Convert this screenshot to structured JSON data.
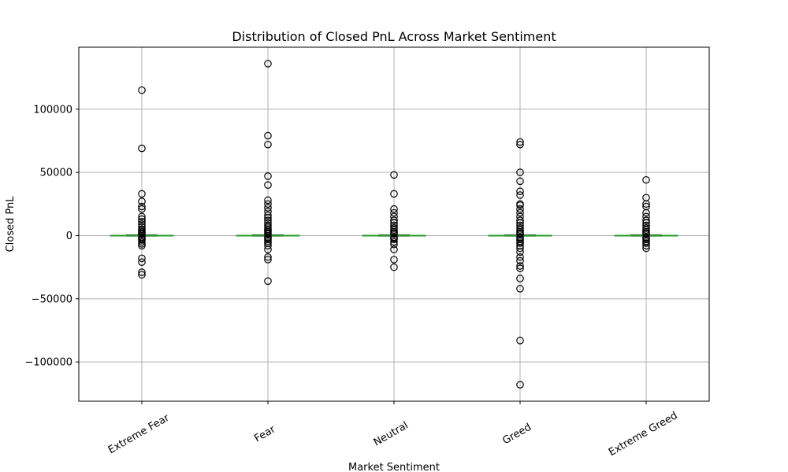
{
  "chart_data": {
    "type": "box",
    "title": "Distribution of Closed PnL Across Market Sentiment",
    "xlabel": "Market Sentiment",
    "ylabel": "Closed PnL",
    "categories": [
      "Extreme Fear",
      "Fear",
      "Neutral",
      "Greed",
      "Extreme Greed"
    ],
    "yticks": [
      -100000,
      -50000,
      0,
      50000,
      100000
    ],
    "ytick_labels": [
      "−100000",
      "−50000",
      "0",
      "50000",
      "100000"
    ],
    "ylim": [
      -131000,
      149000
    ],
    "grid": true,
    "median_color": "#2ca02c",
    "box_color": "#1f77b4",
    "boxes": [
      {
        "name": "Extreme Fear",
        "median": 0,
        "q1": -30,
        "q3": 120,
        "whisker_low": -400,
        "whisker_high": 500,
        "outliers": [
          115000,
          69000,
          33000,
          27000,
          23000,
          21000,
          15000,
          13000,
          11000,
          9000,
          7000,
          5000,
          4000,
          3000,
          2000,
          1500,
          1000,
          -1000,
          -1500,
          -2500,
          -3500,
          -5000,
          -6500,
          -8000,
          -18000,
          -21000,
          -29000,
          -31000
        ]
      },
      {
        "name": "Fear",
        "median": 0,
        "q1": -30,
        "q3": 120,
        "whisker_low": -400,
        "whisker_high": 500,
        "outliers": [
          136000,
          79000,
          72000,
          47000,
          40000,
          28000,
          25000,
          22000,
          19000,
          16000,
          14000,
          12000,
          10000,
          8000,
          6500,
          5000,
          4000,
          3000,
          2000,
          1200,
          -1200,
          -2000,
          -3000,
          -4500,
          -6000,
          -8000,
          -11000,
          -17000,
          -19000,
          -36000
        ]
      },
      {
        "name": "Neutral",
        "median": 0,
        "q1": -30,
        "q3": 120,
        "whisker_low": -400,
        "whisker_high": 500,
        "outliers": [
          48000,
          33000,
          21000,
          18000,
          15000,
          12000,
          10000,
          8000,
          6000,
          4500,
          3000,
          2000,
          1200,
          -1200,
          -2000,
          -3000,
          -5000,
          -7000,
          -11000,
          -19000,
          -25000
        ]
      },
      {
        "name": "Greed",
        "median": 0,
        "q1": -30,
        "q3": 120,
        "whisker_low": -400,
        "whisker_high": 500,
        "outliers": [
          74000,
          72000,
          50000,
          43000,
          35000,
          32000,
          25000,
          24000,
          21000,
          18000,
          15000,
          12000,
          10000,
          8000,
          6000,
          4500,
          3000,
          2000,
          1200,
          -1200,
          -2000,
          -3000,
          -4500,
          -6000,
          -8000,
          -10000,
          -13000,
          -17000,
          -20000,
          -24000,
          -26000,
          -34000,
          -42000,
          -83000,
          -118000
        ]
      },
      {
        "name": "Extreme Greed",
        "median": 0,
        "q1": -30,
        "q3": 120,
        "whisker_low": -400,
        "whisker_high": 500,
        "outliers": [
          44000,
          30000,
          25000,
          23000,
          18000,
          15000,
          12000,
          10000,
          8000,
          6000,
          4500,
          3000,
          2000,
          1200,
          -1200,
          -2000,
          -3000,
          -4500,
          -6000,
          -8000,
          -10000
        ]
      }
    ]
  }
}
